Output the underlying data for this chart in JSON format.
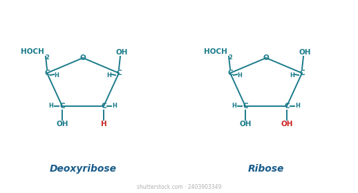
{
  "teal": "#1a7a8a",
  "red": "#cc2222",
  "title_color": "#1a5c8a",
  "bg": "#ffffff",
  "watermark": "shutterstock.com · 2403903349",
  "deoxyribose_label": "Deoxyribose",
  "ribose_label": "Ribose",
  "fig_w": 5.18,
  "fig_h": 2.8,
  "dpi": 100
}
